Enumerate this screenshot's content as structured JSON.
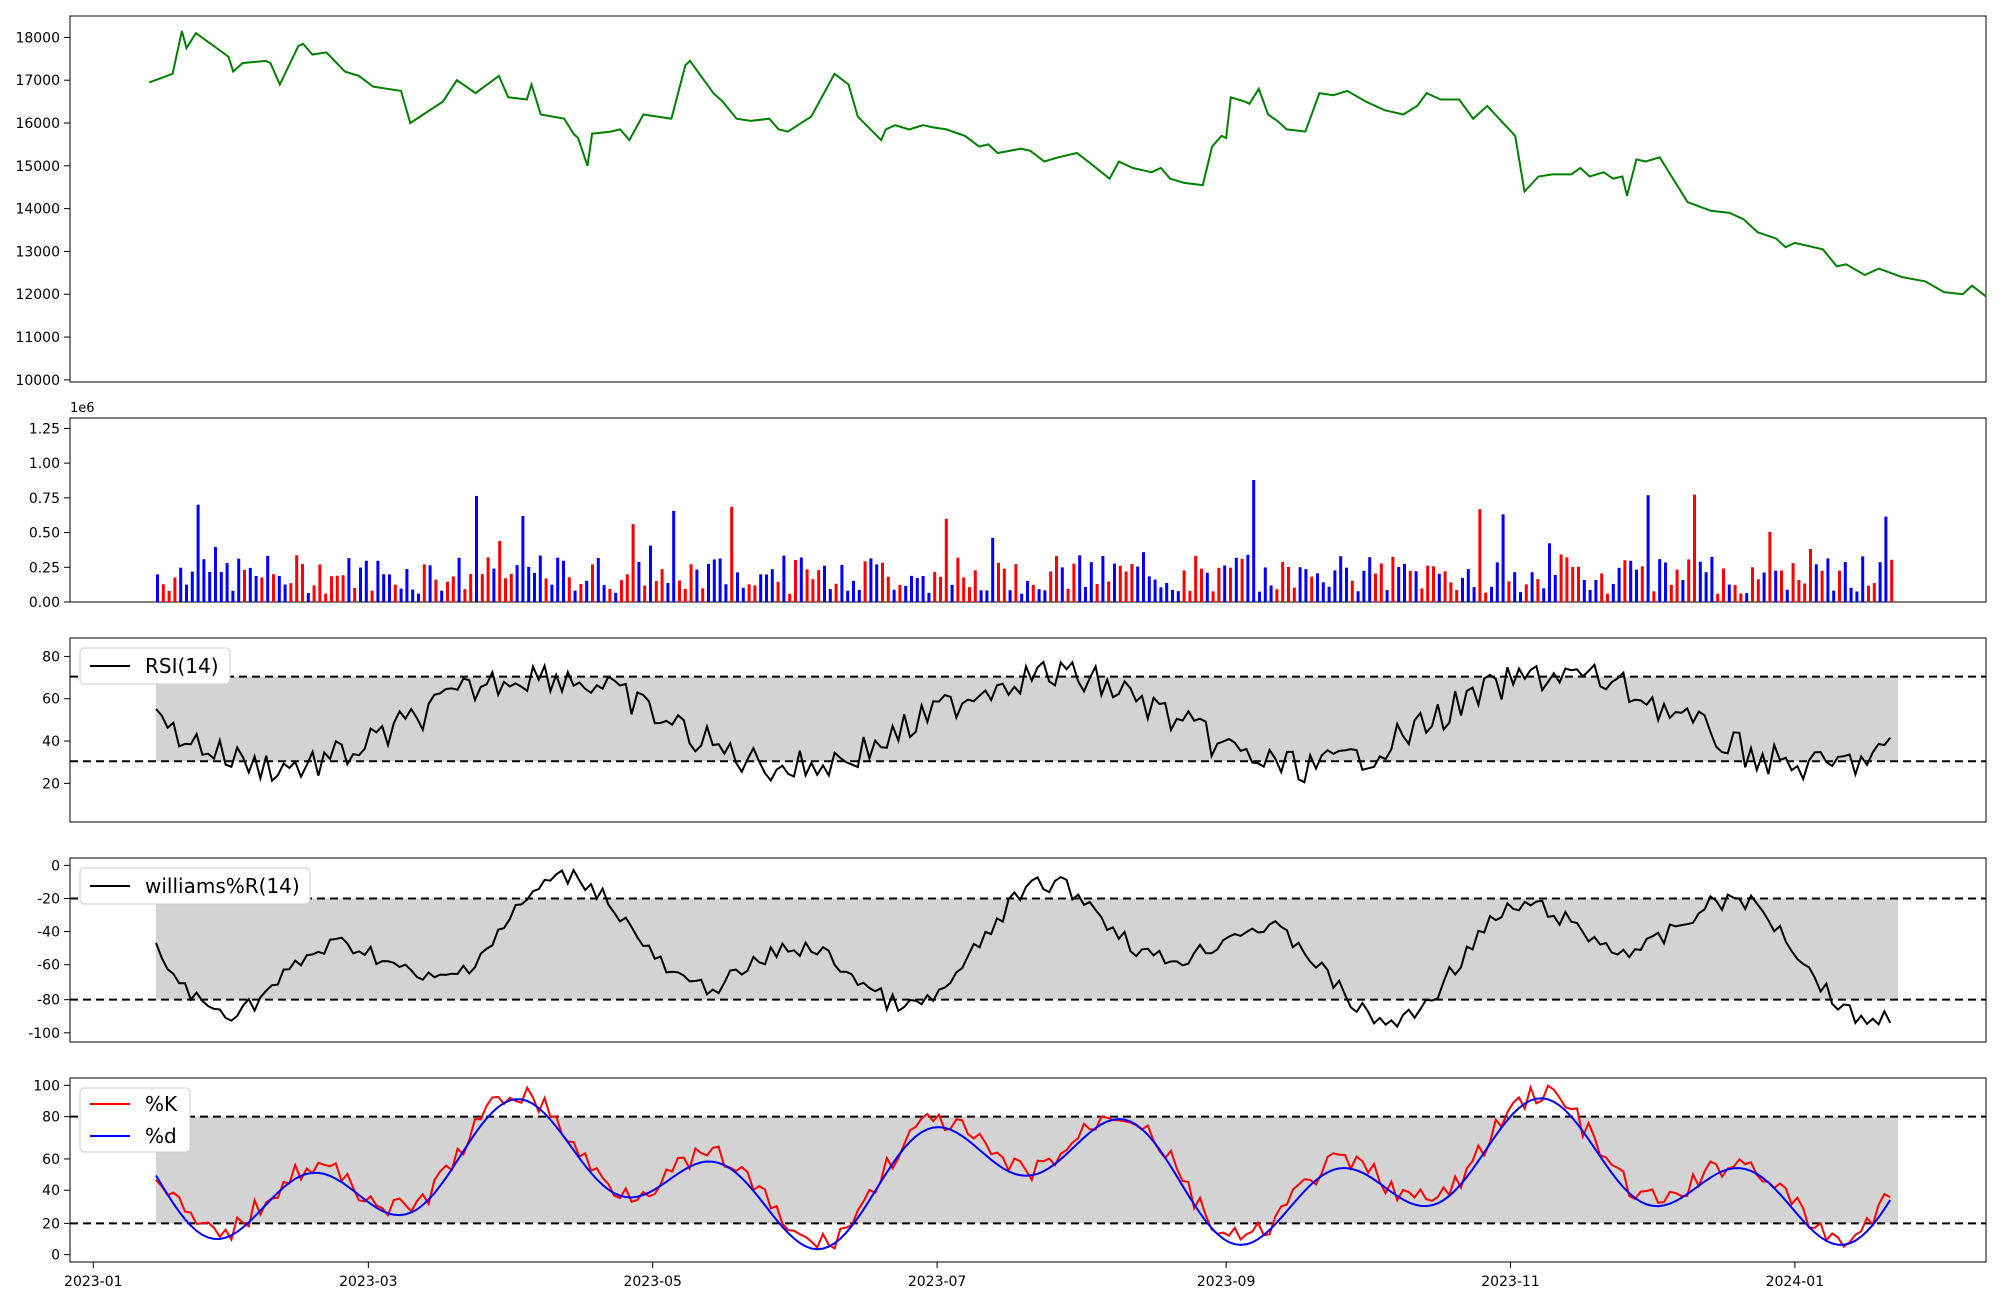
{
  "colors": {
    "price": "#008000",
    "up": "#ff0000",
    "down": "#0000ff",
    "neutral": "#000000",
    "band": "#d3d3d3",
    "k_line": "#ff0000",
    "d_line": "#0000ff",
    "wr_shade": "#ffc0c0"
  },
  "chart_data": [
    {
      "type": "line",
      "panel": "price",
      "x_type": "date",
      "xlim": [
        "2022-12-27",
        "2024-02-11"
      ],
      "ylim": [
        9950,
        18500
      ],
      "yticks": [
        "10000",
        "11000",
        "12000",
        "13000",
        "14000",
        "15000",
        "16000",
        "17000",
        "18000"
      ],
      "series": [
        {
          "values": [
            [
              "2023-01-13",
              16950
            ],
            [
              "2023-01-18",
              17150
            ],
            [
              "2023-01-20",
              18150
            ],
            [
              "2023-01-21",
              17750
            ],
            [
              "2023-01-23",
              18100
            ],
            [
              "2023-01-30",
              17550
            ],
            [
              "2023-01-31",
              17200
            ],
            [
              "2023-02-02",
              17400
            ],
            [
              "2023-02-07",
              17450
            ],
            [
              "2023-02-08",
              17400
            ],
            [
              "2023-02-10",
              16900
            ],
            [
              "2023-02-14",
              17800
            ],
            [
              "2023-02-15",
              17850
            ],
            [
              "2023-02-17",
              17600
            ],
            [
              "2023-02-20",
              17650
            ],
            [
              "2023-02-24",
              17200
            ],
            [
              "2023-02-27",
              17100
            ],
            [
              "2023-03-02",
              16850
            ],
            [
              "2023-03-08",
              16750
            ],
            [
              "2023-03-10",
              16000
            ],
            [
              "2023-03-17",
              16500
            ],
            [
              "2023-03-20",
              17000
            ],
            [
              "2023-03-24",
              16700
            ],
            [
              "2023-03-29",
              17100
            ],
            [
              "2023-03-31",
              16600
            ],
            [
              "2023-04-04",
              16550
            ],
            [
              "2023-04-05",
              16900
            ],
            [
              "2023-04-07",
              16200
            ],
            [
              "2023-04-12",
              16100
            ],
            [
              "2023-04-14",
              15750
            ],
            [
              "2023-04-15",
              15650
            ],
            [
              "2023-04-17",
              15000
            ],
            [
              "2023-04-18",
              15750
            ],
            [
              "2023-04-22",
              15800
            ],
            [
              "2023-04-24",
              15850
            ],
            [
              "2023-04-26",
              15600
            ],
            [
              "2023-04-29",
              16200
            ],
            [
              "2023-05-05",
              16100
            ],
            [
              "2023-05-08",
              17350
            ],
            [
              "2023-05-09",
              17450
            ],
            [
              "2023-05-12",
              17000
            ],
            [
              "2023-05-14",
              16700
            ],
            [
              "2023-05-16",
              16500
            ],
            [
              "2023-05-19",
              16100
            ],
            [
              "2023-05-22",
              16050
            ],
            [
              "2023-05-26",
              16100
            ],
            [
              "2023-05-28",
              15850
            ],
            [
              "2023-05-30",
              15800
            ],
            [
              "2023-06-04",
              16150
            ],
            [
              "2023-06-08",
              16950
            ],
            [
              "2023-06-09",
              17150
            ],
            [
              "2023-06-12",
              16900
            ],
            [
              "2023-06-14",
              16150
            ],
            [
              "2023-06-19",
              15600
            ],
            [
              "2023-06-20",
              15850
            ],
            [
              "2023-06-22",
              15950
            ],
            [
              "2023-06-25",
              15850
            ],
            [
              "2023-06-28",
              15950
            ],
            [
              "2023-06-30",
              15900
            ],
            [
              "2023-07-03",
              15850
            ],
            [
              "2023-07-07",
              15700
            ],
            [
              "2023-07-10",
              15450
            ],
            [
              "2023-07-12",
              15500
            ],
            [
              "2023-07-14",
              15300
            ],
            [
              "2023-07-19",
              15400
            ],
            [
              "2023-07-21",
              15350
            ],
            [
              "2023-07-24",
              15100
            ],
            [
              "2023-07-27",
              15200
            ],
            [
              "2023-07-31",
              15300
            ],
            [
              "2023-08-03",
              15050
            ],
            [
              "2023-08-07",
              14700
            ],
            [
              "2023-08-09",
              15100
            ],
            [
              "2023-08-12",
              14950
            ],
            [
              "2023-08-14",
              14900
            ],
            [
              "2023-08-16",
              14850
            ],
            [
              "2023-08-18",
              14950
            ],
            [
              "2023-08-20",
              14700
            ],
            [
              "2023-08-23",
              14600
            ],
            [
              "2023-08-27",
              14550
            ],
            [
              "2023-08-29",
              15450
            ],
            [
              "2023-08-31",
              15700
            ],
            [
              "2023-09-01",
              15650
            ],
            [
              "2023-09-02",
              16600
            ],
            [
              "2023-09-05",
              16500
            ],
            [
              "2023-09-06",
              16450
            ],
            [
              "2023-09-08",
              16800
            ],
            [
              "2023-09-10",
              16200
            ],
            [
              "2023-09-12",
              16050
            ],
            [
              "2023-09-14",
              15850
            ],
            [
              "2023-09-18",
              15800
            ],
            [
              "2023-09-21",
              16700
            ],
            [
              "2023-09-24",
              16650
            ],
            [
              "2023-09-27",
              16750
            ],
            [
              "2023-10-01",
              16500
            ],
            [
              "2023-10-05",
              16300
            ],
            [
              "2023-10-09",
              16200
            ],
            [
              "2023-10-12",
              16400
            ],
            [
              "2023-10-14",
              16700
            ],
            [
              "2023-10-17",
              16550
            ],
            [
              "2023-10-21",
              16550
            ],
            [
              "2023-10-24",
              16100
            ],
            [
              "2023-10-27",
              16400
            ],
            [
              "2023-11-02",
              15700
            ],
            [
              "2023-11-04",
              14400
            ],
            [
              "2023-11-07",
              14750
            ],
            [
              "2023-11-10",
              14800
            ],
            [
              "2023-11-14",
              14800
            ],
            [
              "2023-11-16",
              14950
            ],
            [
              "2023-11-18",
              14750
            ],
            [
              "2023-11-21",
              14850
            ],
            [
              "2023-11-23",
              14700
            ],
            [
              "2023-11-25",
              14750
            ],
            [
              "2023-11-26",
              14300
            ],
            [
              "2023-11-28",
              15150
            ],
            [
              "2023-11-30",
              15100
            ],
            [
              "2023-12-03",
              15200
            ],
            [
              "2023-12-09",
              14150
            ],
            [
              "2023-12-14",
              13950
            ],
            [
              "2023-12-18",
              13900
            ],
            [
              "2023-12-21",
              13750
            ],
            [
              "2023-12-24",
              13450
            ],
            [
              "2023-12-28",
              13300
            ],
            [
              "2023-12-30",
              13100
            ],
            [
              "2024-01-01",
              13200
            ],
            [
              "2024-01-07",
              13050
            ],
            [
              "2024-01-10",
              12650
            ],
            [
              "2024-01-12",
              12700
            ],
            [
              "2024-01-16",
              12450
            ],
            [
              "2024-01-19",
              12600
            ],
            [
              "2024-01-24",
              12400
            ],
            [
              "2024-01-29",
              12300
            ],
            [
              "2024-02-02",
              12050
            ],
            [
              "2024-02-06",
              12000
            ],
            [
              "2024-02-08",
              12200
            ],
            [
              "2024-02-11",
              11950
            ]
          ]
        }
      ]
    }
  ]
}
